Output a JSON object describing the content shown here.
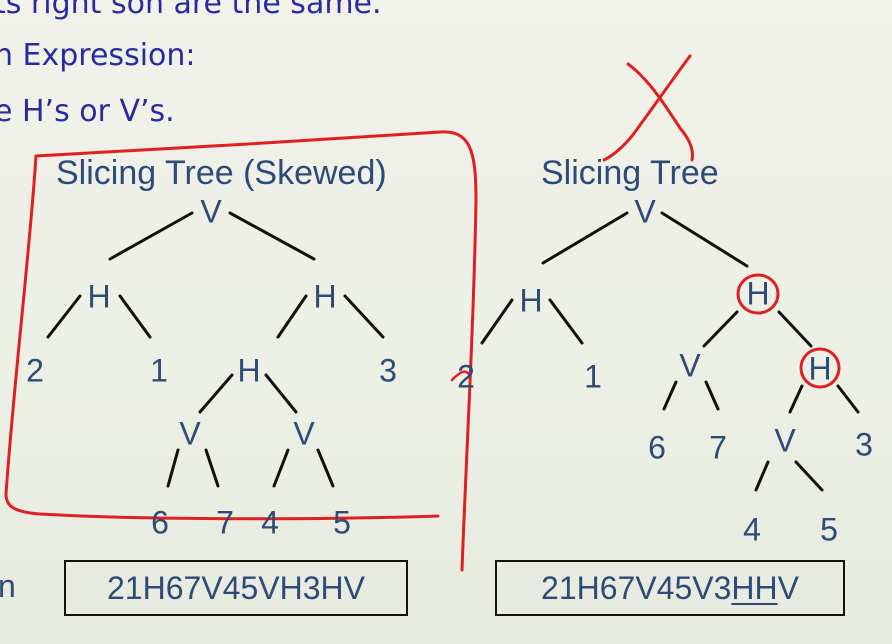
{
  "bullets": [
    "ts right son are the same.",
    "n Expression:",
    "e H’s or V’s."
  ],
  "left_tree": {
    "title": "Slicing Tree (Skewed)",
    "nodes": [
      "V",
      "H",
      "H",
      "2",
      "1",
      "H",
      "3",
      "V",
      "V",
      "6",
      "7",
      "4",
      "5"
    ],
    "expression": "21H67V45VH3HV"
  },
  "right_tree": {
    "title": "Slicing Tree",
    "nodes": [
      "V",
      "H",
      "H",
      "2",
      "1",
      "V",
      "H",
      "6",
      "7",
      "V",
      "3",
      "4",
      "5"
    ],
    "expression_parts": [
      "21H67V45V3",
      "HH",
      "V"
    ]
  },
  "expression_prefix": "n",
  "colors": {
    "text": "#2e4a78",
    "bullet": "#2a2aa0",
    "annotation": "#e02020",
    "background": "#eef0e6"
  }
}
